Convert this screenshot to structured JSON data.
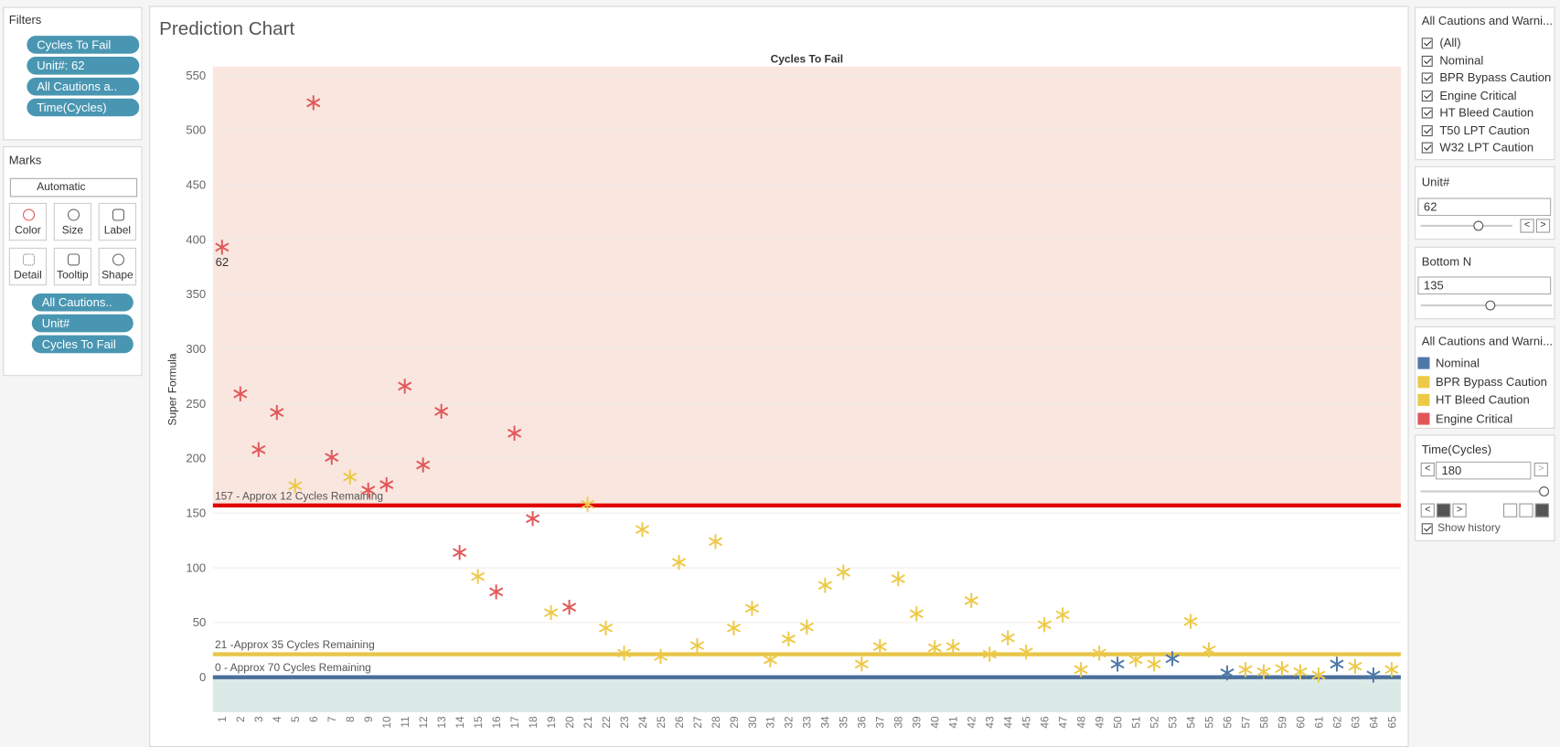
{
  "filters": {
    "title": "Filters",
    "pills": [
      "Cycles To Fail",
      "Unit#: 62",
      "All Cautions a..",
      "Time(Cycles)"
    ]
  },
  "marks": {
    "title": "Marks",
    "mark_type": "Automatic",
    "buttons": [
      "Color",
      "Size",
      "Label",
      "Detail",
      "Tooltip",
      "Shape"
    ],
    "pills": [
      "All Cautions..",
      "Unit#",
      "Cycles To Fail"
    ]
  },
  "sheet_title": "Prediction Chart",
  "caution_filter": {
    "title": "All Cautions and Warni...",
    "options": [
      "(All)",
      "Nominal",
      "BPR Bypass Caution",
      "Engine Critical",
      "HT Bleed Caution",
      "T50 LPT Caution",
      "W32 LPT Caution"
    ]
  },
  "unit_filter": {
    "title": "Unit#",
    "value": "62"
  },
  "bottom_n": {
    "title": "Bottom N",
    "value": "135"
  },
  "time_filter": {
    "title": "Time(Cycles)",
    "value": "180",
    "show_history": "Show history"
  },
  "chart_data": {
    "type": "scatter",
    "title": "Cycles To Fail",
    "y_label": "Super Formula",
    "legend_title": "All Cautions and Warni...",
    "categories": [
      "1",
      "2",
      "3",
      "4",
      "5",
      "6",
      "7",
      "8",
      "9",
      "10",
      "11",
      "12",
      "13",
      "14",
      "15",
      "16",
      "17",
      "18",
      "19",
      "20",
      "21",
      "22",
      "23",
      "24",
      "25",
      "26",
      "27",
      "28",
      "29",
      "30",
      "31",
      "32",
      "33",
      "34",
      "35",
      "36",
      "37",
      "38",
      "39",
      "40",
      "41",
      "42",
      "43",
      "44",
      "45",
      "46",
      "47",
      "48",
      "49",
      "50",
      "51",
      "52",
      "53",
      "54",
      "55",
      "56",
      "57",
      "58",
      "59",
      "60",
      "61",
      "62",
      "63",
      "64",
      "65"
    ],
    "series": [
      {
        "name": "Nominal",
        "color": "#4e79a7",
        "values": [
          null,
          null,
          null,
          null,
          null,
          null,
          null,
          null,
          null,
          null,
          null,
          null,
          null,
          null,
          null,
          null,
          null,
          null,
          null,
          null,
          null,
          null,
          null,
          null,
          null,
          null,
          null,
          null,
          null,
          null,
          null,
          null,
          null,
          null,
          null,
          null,
          null,
          null,
          null,
          null,
          null,
          null,
          null,
          null,
          null,
          null,
          null,
          null,
          null,
          12,
          null,
          null,
          17,
          null,
          null,
          4,
          null,
          null,
          null,
          null,
          null,
          12,
          null,
          2,
          null
        ]
      },
      {
        "name": "BPR Bypass Caution",
        "color": "#edc948",
        "values": [
          null,
          null,
          null,
          null,
          175,
          null,
          null,
          183,
          null,
          null,
          null,
          null,
          null,
          null,
          92,
          null,
          null,
          null,
          59,
          null,
          158,
          45,
          22,
          135,
          19,
          105,
          29,
          124,
          45,
          63,
          16,
          35,
          46,
          84,
          96,
          12,
          28,
          90,
          58,
          27,
          28,
          70,
          21,
          36,
          23,
          48,
          57,
          7,
          22,
          null,
          16,
          12,
          null,
          51,
          25,
          null,
          7,
          5,
          8,
          5,
          2,
          null,
          10,
          null,
          7
        ]
      },
      {
        "name": "HT Bleed Caution",
        "color": "#edc948",
        "values": [
          null,
          null,
          null,
          null,
          null,
          null,
          null,
          null,
          null,
          null,
          null,
          null,
          null,
          null,
          null,
          null,
          null,
          null,
          null,
          null,
          null,
          null,
          null,
          null,
          null,
          null,
          null,
          null,
          null,
          null,
          null,
          null,
          null,
          null,
          null,
          null,
          null,
          null,
          null,
          null,
          null,
          null,
          null,
          null,
          null,
          null,
          null,
          null,
          null,
          null,
          null,
          null,
          null,
          null,
          null,
          null,
          null,
          null,
          null,
          null,
          null,
          null,
          null,
          null,
          null
        ]
      },
      {
        "name": "Engine Critical",
        "color": "#e15759",
        "values": [
          393,
          259,
          208,
          242,
          null,
          525,
          201,
          null,
          171,
          176,
          266,
          194,
          243,
          114,
          null,
          78,
          223,
          145,
          null,
          64,
          null,
          null,
          null,
          null,
          null,
          null,
          null,
          null,
          null,
          null,
          null,
          null,
          null,
          null,
          null,
          null,
          null,
          null,
          null,
          null,
          null,
          null,
          null,
          null,
          null,
          null,
          null,
          null,
          null,
          null,
          null,
          null,
          null,
          null,
          null,
          null,
          null,
          null,
          null,
          null,
          null,
          null,
          null,
          null,
          null
        ]
      }
    ],
    "reference_lines": [
      {
        "value": 157,
        "label": "157 - Approx 12 Cycles Remaining",
        "color": "#e00000",
        "shade": "above",
        "shade_color": "#f9e6df"
      },
      {
        "value": 21,
        "label": "21 -Approx 35 Cycles Remaining",
        "color": "#e8c547"
      },
      {
        "value": 0,
        "label": "0 - Approx 70 Cycles Remaining",
        "color": "#4b6e9b",
        "shade": "below",
        "shade_color": "#dbeae6"
      }
    ],
    "annotations": [
      {
        "text": "62",
        "category": "1"
      }
    ],
    "ylim": [
      -32,
      558
    ],
    "yticks": [
      0,
      50,
      100,
      150,
      200,
      250,
      300,
      350,
      400,
      450,
      500,
      550
    ],
    "grid": true
  }
}
